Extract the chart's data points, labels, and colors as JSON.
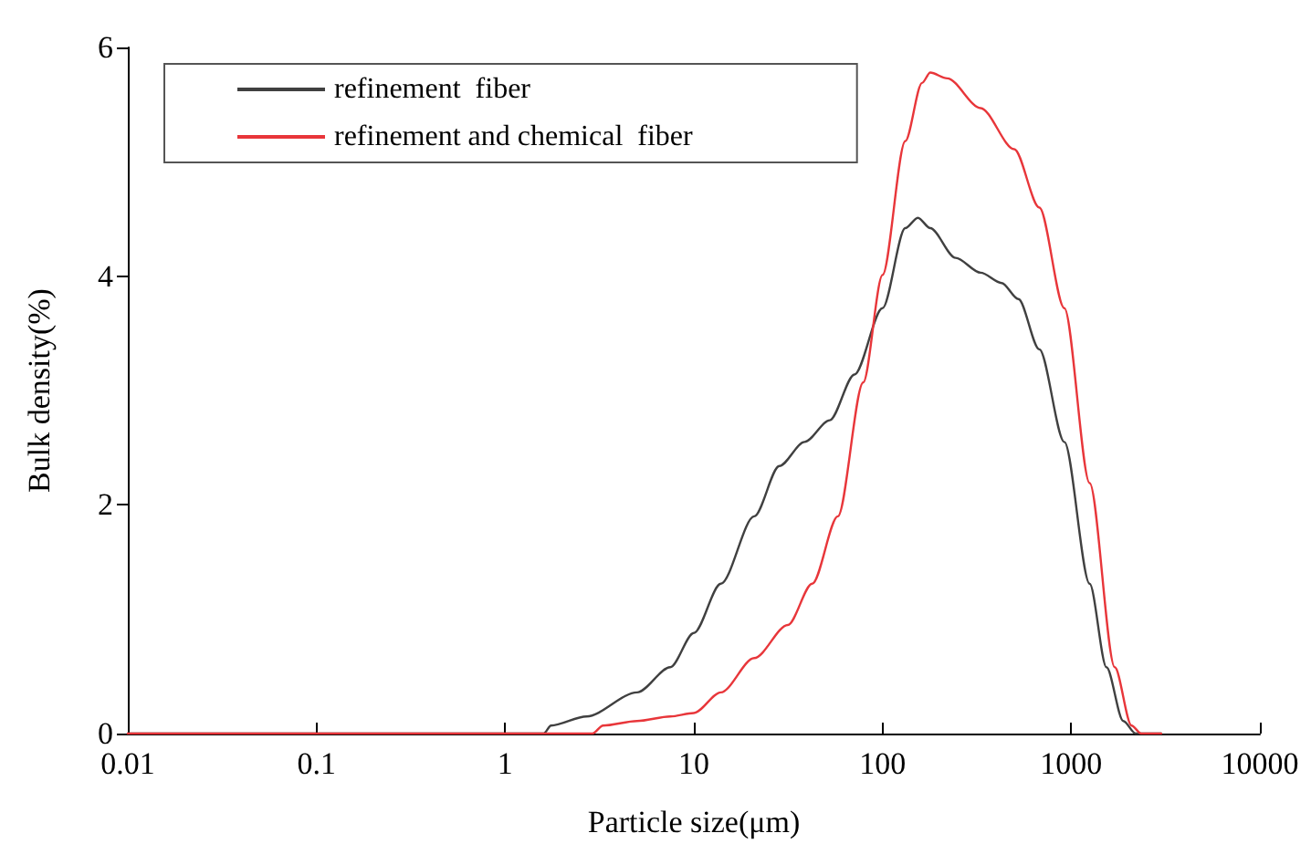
{
  "chart_data": {
    "type": "line",
    "xlabel": "Particle size(μm)",
    "ylabel": "Bulk density(%)",
    "log": "x",
    "xlim": [
      0.01,
      10000
    ],
    "xticks": [
      0.01,
      0.1,
      1,
      10,
      100,
      1000,
      10000
    ],
    "ylim": [
      0,
      6
    ],
    "yticks": [
      0,
      2,
      4,
      6
    ],
    "grid": false,
    "legend": "top left",
    "marker": "none",
    "line_style": "solid",
    "series": [
      {
        "name": "refinement  fiber",
        "color": "#404040",
        "x": [
          0.01,
          1.6,
          1.75,
          2.7,
          5,
          7.5,
          10,
          13.9,
          20.9,
          28.4,
          38.6,
          52.5,
          71,
          100,
          132,
          154,
          179,
          244,
          331,
          428,
          525,
          678,
          920,
          1253,
          1538,
          1888,
          2198,
          3000
        ],
        "values": [
          0,
          0,
          0.07,
          0.15,
          0.36,
          0.58,
          0.88,
          1.31,
          1.9,
          2.34,
          2.55,
          2.74,
          3.14,
          3.72,
          4.42,
          4.51,
          4.42,
          4.16,
          4.03,
          3.94,
          3.8,
          3.36,
          2.55,
          1.31,
          0.58,
          0.11,
          0,
          0
        ]
      },
      {
        "name": "refinement and chemical  fiber",
        "color": "#e8363a",
        "x": [
          0.01,
          2.9,
          3.3,
          5,
          7.5,
          10,
          13.9,
          20.9,
          31.5,
          42.4,
          58,
          79,
          100,
          132,
          162,
          179,
          220,
          331,
          499,
          678,
          920,
          1253,
          1702,
          2089,
          2350,
          3000
        ],
        "values": [
          0,
          0,
          0.07,
          0.11,
          0.15,
          0.18,
          0.36,
          0.66,
          0.95,
          1.31,
          1.9,
          3.07,
          4.01,
          5.18,
          5.69,
          5.78,
          5.73,
          5.47,
          5.11,
          4.6,
          3.72,
          2.19,
          0.58,
          0.07,
          0,
          0
        ]
      }
    ]
  }
}
